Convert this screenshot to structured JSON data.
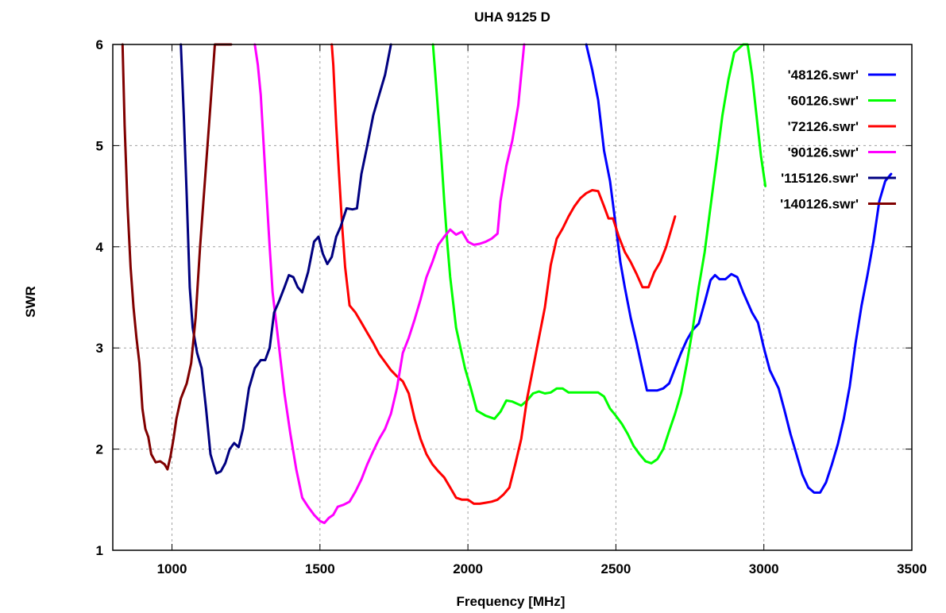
{
  "chart_data": {
    "type": "line",
    "title": "UHA 9125 D",
    "xlabel": "Frequency [MHz]",
    "ylabel": "SWR",
    "xlim": [
      800,
      3500
    ],
    "ylim": [
      1,
      6
    ],
    "x_ticks": [
      1000,
      1500,
      2000,
      2500,
      3000,
      3500
    ],
    "y_ticks": [
      1,
      2,
      3,
      4,
      5,
      6
    ],
    "grid": true,
    "legend_position": "top-right",
    "series": [
      {
        "name": "'48126.swr'",
        "color": "#0000ff",
        "points": [
          [
            2400,
            6.0
          ],
          [
            2420,
            5.75
          ],
          [
            2440,
            5.45
          ],
          [
            2460,
            4.95
          ],
          [
            2480,
            4.65
          ],
          [
            2500,
            4.2
          ],
          [
            2515,
            3.85
          ],
          [
            2530,
            3.6
          ],
          [
            2550,
            3.3
          ],
          [
            2570,
            3.05
          ],
          [
            2590,
            2.78
          ],
          [
            2605,
            2.58
          ],
          [
            2620,
            2.58
          ],
          [
            2640,
            2.58
          ],
          [
            2660,
            2.6
          ],
          [
            2680,
            2.65
          ],
          [
            2700,
            2.8
          ],
          [
            2720,
            2.95
          ],
          [
            2740,
            3.08
          ],
          [
            2760,
            3.18
          ],
          [
            2780,
            3.24
          ],
          [
            2800,
            3.45
          ],
          [
            2820,
            3.67
          ],
          [
            2835,
            3.72
          ],
          [
            2850,
            3.68
          ],
          [
            2870,
            3.68
          ],
          [
            2890,
            3.73
          ],
          [
            2910,
            3.7
          ],
          [
            2930,
            3.55
          ],
          [
            2960,
            3.35
          ],
          [
            2980,
            3.25
          ],
          [
            3000,
            3.0
          ],
          [
            3020,
            2.78
          ],
          [
            3050,
            2.6
          ],
          [
            3070,
            2.38
          ],
          [
            3090,
            2.15
          ],
          [
            3110,
            1.95
          ],
          [
            3130,
            1.75
          ],
          [
            3150,
            1.62
          ],
          [
            3170,
            1.57
          ],
          [
            3190,
            1.57
          ],
          [
            3210,
            1.67
          ],
          [
            3230,
            1.85
          ],
          [
            3250,
            2.05
          ],
          [
            3270,
            2.3
          ],
          [
            3290,
            2.62
          ],
          [
            3310,
            3.05
          ],
          [
            3330,
            3.42
          ],
          [
            3350,
            3.72
          ],
          [
            3370,
            4.05
          ],
          [
            3390,
            4.45
          ],
          [
            3410,
            4.65
          ],
          [
            3430,
            4.72
          ]
        ]
      },
      {
        "name": "'60126.swr'",
        "color": "#00ff00",
        "points": [
          [
            1882,
            6.0
          ],
          [
            1890,
            5.7
          ],
          [
            1900,
            5.3
          ],
          [
            1910,
            4.9
          ],
          [
            1920,
            4.45
          ],
          [
            1930,
            4.05
          ],
          [
            1940,
            3.7
          ],
          [
            1950,
            3.45
          ],
          [
            1960,
            3.2
          ],
          [
            1975,
            3.0
          ],
          [
            1990,
            2.8
          ],
          [
            2010,
            2.6
          ],
          [
            2030,
            2.38
          ],
          [
            2060,
            2.33
          ],
          [
            2090,
            2.3
          ],
          [
            2110,
            2.37
          ],
          [
            2130,
            2.48
          ],
          [
            2150,
            2.47
          ],
          [
            2180,
            2.43
          ],
          [
            2200,
            2.48
          ],
          [
            2220,
            2.55
          ],
          [
            2240,
            2.57
          ],
          [
            2260,
            2.55
          ],
          [
            2280,
            2.56
          ],
          [
            2300,
            2.6
          ],
          [
            2320,
            2.6
          ],
          [
            2340,
            2.56
          ],
          [
            2400,
            2.56
          ],
          [
            2440,
            2.56
          ],
          [
            2460,
            2.52
          ],
          [
            2480,
            2.4
          ],
          [
            2500,
            2.33
          ],
          [
            2520,
            2.25
          ],
          [
            2540,
            2.15
          ],
          [
            2560,
            2.03
          ],
          [
            2580,
            1.95
          ],
          [
            2600,
            1.88
          ],
          [
            2620,
            1.86
          ],
          [
            2640,
            1.9
          ],
          [
            2660,
            2.0
          ],
          [
            2680,
            2.18
          ],
          [
            2700,
            2.35
          ],
          [
            2720,
            2.55
          ],
          [
            2740,
            2.85
          ],
          [
            2760,
            3.2
          ],
          [
            2780,
            3.6
          ],
          [
            2800,
            3.95
          ],
          [
            2820,
            4.4
          ],
          [
            2840,
            4.85
          ],
          [
            2860,
            5.3
          ],
          [
            2880,
            5.65
          ],
          [
            2900,
            5.92
          ],
          [
            2930,
            6.0
          ],
          [
            2945,
            6.0
          ],
          [
            2960,
            5.7
          ],
          [
            2975,
            5.3
          ],
          [
            2990,
            4.9
          ],
          [
            3005,
            4.6
          ]
        ]
      },
      {
        "name": "'72126.swr'",
        "color": "#ff0000",
        "points": [
          [
            1540,
            6.0
          ],
          [
            1545,
            5.8
          ],
          [
            1555,
            5.2
          ],
          [
            1565,
            4.7
          ],
          [
            1575,
            4.2
          ],
          [
            1585,
            3.8
          ],
          [
            1600,
            3.42
          ],
          [
            1620,
            3.35
          ],
          [
            1640,
            3.25
          ],
          [
            1660,
            3.15
          ],
          [
            1680,
            3.05
          ],
          [
            1700,
            2.94
          ],
          [
            1720,
            2.86
          ],
          [
            1740,
            2.78
          ],
          [
            1760,
            2.72
          ],
          [
            1780,
            2.67
          ],
          [
            1800,
            2.55
          ],
          [
            1820,
            2.3
          ],
          [
            1840,
            2.1
          ],
          [
            1860,
            1.95
          ],
          [
            1880,
            1.85
          ],
          [
            1900,
            1.78
          ],
          [
            1920,
            1.72
          ],
          [
            1940,
            1.62
          ],
          [
            1960,
            1.52
          ],
          [
            1980,
            1.5
          ],
          [
            2000,
            1.5
          ],
          [
            2020,
            1.46
          ],
          [
            2040,
            1.46
          ],
          [
            2060,
            1.47
          ],
          [
            2080,
            1.48
          ],
          [
            2100,
            1.5
          ],
          [
            2120,
            1.55
          ],
          [
            2140,
            1.62
          ],
          [
            2160,
            1.85
          ],
          [
            2180,
            2.1
          ],
          [
            2200,
            2.5
          ],
          [
            2220,
            2.8
          ],
          [
            2240,
            3.1
          ],
          [
            2260,
            3.4
          ],
          [
            2280,
            3.82
          ],
          [
            2300,
            4.08
          ],
          [
            2320,
            4.18
          ],
          [
            2340,
            4.3
          ],
          [
            2360,
            4.4
          ],
          [
            2380,
            4.48
          ],
          [
            2400,
            4.53
          ],
          [
            2420,
            4.56
          ],
          [
            2440,
            4.55
          ],
          [
            2460,
            4.4
          ],
          [
            2475,
            4.28
          ],
          [
            2490,
            4.28
          ],
          [
            2510,
            4.1
          ],
          [
            2530,
            3.95
          ],
          [
            2550,
            3.85
          ],
          [
            2570,
            3.73
          ],
          [
            2590,
            3.6
          ],
          [
            2610,
            3.6
          ],
          [
            2630,
            3.75
          ],
          [
            2650,
            3.85
          ],
          [
            2670,
            4.0
          ],
          [
            2690,
            4.2
          ],
          [
            2700,
            4.3
          ]
        ]
      },
      {
        "name": "'90126.swr'",
        "color": "#ff00ff",
        "points": [
          [
            1280,
            6.0
          ],
          [
            1290,
            5.8
          ],
          [
            1300,
            5.5
          ],
          [
            1310,
            5.0
          ],
          [
            1320,
            4.5
          ],
          [
            1330,
            4.0
          ],
          [
            1340,
            3.55
          ],
          [
            1360,
            3.05
          ],
          [
            1380,
            2.55
          ],
          [
            1400,
            2.15
          ],
          [
            1420,
            1.8
          ],
          [
            1440,
            1.52
          ],
          [
            1460,
            1.43
          ],
          [
            1480,
            1.35
          ],
          [
            1500,
            1.29
          ],
          [
            1515,
            1.27
          ],
          [
            1530,
            1.32
          ],
          [
            1545,
            1.35
          ],
          [
            1560,
            1.43
          ],
          [
            1580,
            1.45
          ],
          [
            1600,
            1.48
          ],
          [
            1620,
            1.58
          ],
          [
            1640,
            1.7
          ],
          [
            1660,
            1.85
          ],
          [
            1680,
            1.98
          ],
          [
            1700,
            2.1
          ],
          [
            1720,
            2.2
          ],
          [
            1740,
            2.35
          ],
          [
            1760,
            2.6
          ],
          [
            1780,
            2.95
          ],
          [
            1800,
            3.1
          ],
          [
            1820,
            3.28
          ],
          [
            1840,
            3.48
          ],
          [
            1860,
            3.7
          ],
          [
            1880,
            3.85
          ],
          [
            1900,
            4.02
          ],
          [
            1920,
            4.1
          ],
          [
            1940,
            4.17
          ],
          [
            1960,
            4.12
          ],
          [
            1980,
            4.15
          ],
          [
            2000,
            4.05
          ],
          [
            2020,
            4.02
          ],
          [
            2040,
            4.03
          ],
          [
            2060,
            4.05
          ],
          [
            2080,
            4.08
          ],
          [
            2100,
            4.13
          ],
          [
            2110,
            4.45
          ],
          [
            2130,
            4.8
          ],
          [
            2150,
            5.05
          ],
          [
            2170,
            5.4
          ],
          [
            2180,
            5.7
          ],
          [
            2190,
            6.0
          ]
        ]
      },
      {
        "name": "'115126.swr'",
        "color": "#000080",
        "points": [
          [
            1030,
            6.0
          ],
          [
            1040,
            5.3
          ],
          [
            1050,
            4.5
          ],
          [
            1060,
            3.6
          ],
          [
            1070,
            3.2
          ],
          [
            1085,
            2.95
          ],
          [
            1100,
            2.8
          ],
          [
            1115,
            2.4
          ],
          [
            1130,
            1.95
          ],
          [
            1140,
            1.85
          ],
          [
            1150,
            1.76
          ],
          [
            1165,
            1.78
          ],
          [
            1180,
            1.86
          ],
          [
            1195,
            2.0
          ],
          [
            1210,
            2.06
          ],
          [
            1225,
            2.02
          ],
          [
            1240,
            2.2
          ],
          [
            1260,
            2.6
          ],
          [
            1280,
            2.8
          ],
          [
            1300,
            2.88
          ],
          [
            1315,
            2.88
          ],
          [
            1330,
            3.0
          ],
          [
            1345,
            3.35
          ],
          [
            1360,
            3.45
          ],
          [
            1380,
            3.6
          ],
          [
            1395,
            3.72
          ],
          [
            1410,
            3.7
          ],
          [
            1425,
            3.6
          ],
          [
            1440,
            3.55
          ],
          [
            1460,
            3.75
          ],
          [
            1480,
            4.05
          ],
          [
            1495,
            4.1
          ],
          [
            1510,
            3.93
          ],
          [
            1525,
            3.83
          ],
          [
            1540,
            3.9
          ],
          [
            1555,
            4.1
          ],
          [
            1570,
            4.2
          ],
          [
            1590,
            4.38
          ],
          [
            1610,
            4.37
          ],
          [
            1625,
            4.38
          ],
          [
            1640,
            4.72
          ],
          [
            1660,
            5.0
          ],
          [
            1680,
            5.3
          ],
          [
            1700,
            5.5
          ],
          [
            1720,
            5.7
          ],
          [
            1740,
            6.0
          ]
        ]
      },
      {
        "name": "'140126.swr'",
        "color": "#800000",
        "points": [
          [
            833,
            6.0
          ],
          [
            840,
            5.2
          ],
          [
            850,
            4.4
          ],
          [
            860,
            3.8
          ],
          [
            870,
            3.4
          ],
          [
            880,
            3.1
          ],
          [
            890,
            2.85
          ],
          [
            900,
            2.4
          ],
          [
            910,
            2.2
          ],
          [
            920,
            2.12
          ],
          [
            930,
            1.95
          ],
          [
            945,
            1.87
          ],
          [
            960,
            1.88
          ],
          [
            975,
            1.85
          ],
          [
            985,
            1.8
          ],
          [
            995,
            1.93
          ],
          [
            1005,
            2.1
          ],
          [
            1015,
            2.3
          ],
          [
            1030,
            2.5
          ],
          [
            1050,
            2.65
          ],
          [
            1065,
            2.85
          ],
          [
            1080,
            3.3
          ],
          [
            1095,
            4.0
          ],
          [
            1110,
            4.6
          ],
          [
            1125,
            5.2
          ],
          [
            1140,
            5.8
          ],
          [
            1145,
            6.0
          ],
          [
            1200,
            6.0
          ]
        ]
      }
    ]
  }
}
